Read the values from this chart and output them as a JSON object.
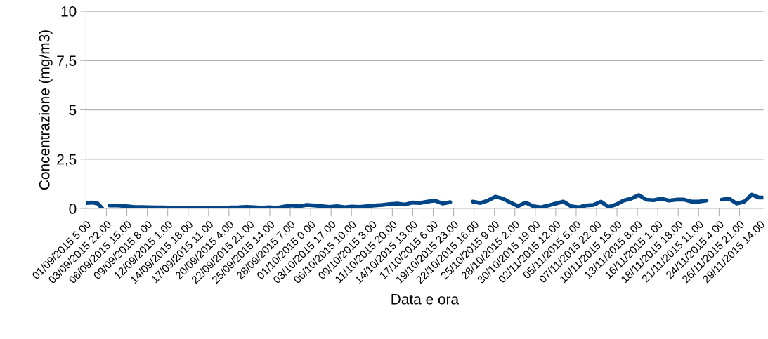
{
  "chart_data": {
    "type": "line",
    "xlabel": "Data e ora",
    "ylabel": "Concentrazione (mg/m3)",
    "x": [
      "2015-09-01T05:00",
      "2015-09-02T00:00",
      "2015-09-02T18:00",
      "2015-09-03T08:00",
      "2015-09-03T20:00",
      "2015-09-04T08:00",
      "2015-09-05T12:00",
      "2015-09-06T12:00",
      "2015-09-07T12:00",
      "2015-09-08T12:00",
      "2015-09-09T12:00",
      "2015-09-10T12:00",
      "2015-09-11T12:00",
      "2015-09-12T12:00",
      "2015-09-13T12:00",
      "2015-09-14T12:00",
      "2015-09-15T12:00",
      "2015-09-16T12:00",
      "2015-09-17T12:00",
      "2015-09-18T12:00",
      "2015-09-19T12:00",
      "2015-09-20T12:00",
      "2015-09-21T12:00",
      "2015-09-22T12:00",
      "2015-09-23T12:00",
      "2015-09-24T12:00",
      "2015-09-25T12:00",
      "2015-09-26T12:00",
      "2015-09-27T12:00",
      "2015-09-28T12:00",
      "2015-09-29T12:00",
      "2015-09-30T12:00",
      "2015-10-01T12:00",
      "2015-10-02T12:00",
      "2015-10-03T12:00",
      "2015-10-04T12:00",
      "2015-10-05T12:00",
      "2015-10-06T12:00",
      "2015-10-07T12:00",
      "2015-10-08T12:00",
      "2015-10-09T12:00",
      "2015-10-10T12:00",
      "2015-10-11T12:00",
      "2015-10-12T12:00",
      "2015-10-13T12:00",
      "2015-10-14T12:00",
      "2015-10-15T12:00",
      "2015-10-16T12:00",
      "2015-10-17T12:00",
      "2015-10-18T12:00",
      "2015-10-19T12:00",
      "2015-10-20T12:00",
      "2015-10-21T12:00",
      "2015-10-22T12:00",
      "2015-10-23T12:00",
      "2015-10-24T12:00",
      "2015-10-25T12:00",
      "2015-10-26T12:00",
      "2015-10-27T12:00",
      "2015-10-28T12:00",
      "2015-10-29T12:00",
      "2015-10-30T12:00",
      "2015-10-31T12:00",
      "2015-11-01T12:00",
      "2015-11-02T12:00",
      "2015-11-03T12:00",
      "2015-11-04T12:00",
      "2015-11-05T12:00",
      "2015-11-06T12:00",
      "2015-11-07T12:00",
      "2015-11-08T12:00",
      "2015-11-09T12:00",
      "2015-11-10T12:00",
      "2015-11-11T12:00",
      "2015-11-12T12:00",
      "2015-11-13T12:00",
      "2015-11-14T12:00",
      "2015-11-15T12:00",
      "2015-11-16T12:00",
      "2015-11-17T12:00",
      "2015-11-18T12:00",
      "2015-11-19T12:00",
      "2015-11-20T12:00",
      "2015-11-21T12:00",
      "2015-11-22T12:00",
      "2015-11-23T12:00",
      "2015-11-24T12:00",
      "2015-11-25T12:00",
      "2015-11-26T12:00",
      "2015-11-27T12:00",
      "2015-11-28T12:00",
      "2015-11-29T12:00",
      "2015-11-30T01:00"
    ],
    "series": [
      {
        "color": "#004586",
        "values": [
          0.28,
          0.3,
          0.25,
          0.02,
          null,
          0.15,
          0.15,
          0.12,
          0.08,
          0.07,
          0.06,
          0.05,
          0.05,
          0.04,
          0.03,
          0.04,
          0.03,
          0.02,
          0.03,
          0.04,
          0.03,
          0.05,
          0.06,
          0.08,
          0.06,
          0.04,
          0.06,
          0.03,
          0.1,
          0.15,
          0.12,
          0.18,
          0.15,
          0.12,
          0.08,
          0.12,
          0.06,
          0.1,
          0.08,
          0.12,
          0.15,
          0.18,
          0.22,
          0.25,
          0.2,
          0.3,
          0.28,
          0.35,
          0.4,
          0.25,
          0.32,
          null,
          null,
          0.35,
          0.28,
          0.4,
          0.6,
          0.5,
          0.3,
          0.12,
          0.3,
          0.12,
          0.06,
          0.15,
          0.25,
          0.35,
          0.12,
          0.06,
          0.15,
          0.18,
          0.35,
          0.08,
          0.2,
          0.4,
          0.5,
          0.68,
          0.45,
          0.42,
          0.5,
          0.4,
          0.45,
          0.45,
          0.35,
          0.35,
          0.4,
          null,
          0.45,
          0.5,
          0.25,
          0.35,
          0.7,
          0.55,
          0.55
        ]
      }
    ],
    "xlim": [
      "2015-09-01T05:00",
      "2015-11-30T01:00"
    ],
    "xticks": [
      {
        "value": "2015-09-01T05:00",
        "label": "01/09/2015 5.00"
      },
      {
        "value": "2015-09-03T22:00",
        "label": "03/09/2015 22.00"
      },
      {
        "value": "2015-09-06T15:00",
        "label": "06/09/2015 15.00"
      },
      {
        "value": "2015-09-09T08:00",
        "label": "09/09/2015 8.00"
      },
      {
        "value": "2015-09-12T01:00",
        "label": "12/09/2015 1.00"
      },
      {
        "value": "2015-09-14T18:00",
        "label": "14/09/2015 18.00"
      },
      {
        "value": "2015-09-17T11:00",
        "label": "17/09/2015 11.00"
      },
      {
        "value": "2015-09-20T04:00",
        "label": "20/09/2015 4.00"
      },
      {
        "value": "2015-09-22T21:00",
        "label": "22/09/2015 21.00"
      },
      {
        "value": "2015-09-25T14:00",
        "label": "25/09/2015 14.00"
      },
      {
        "value": "2015-09-28T07:00",
        "label": "28/09/2015 7.00"
      },
      {
        "value": "2015-10-01T00:00",
        "label": "01/10/2015 0.00"
      },
      {
        "value": "2015-10-03T17:00",
        "label": "03/10/2015 17.00"
      },
      {
        "value": "2015-10-06T10:00",
        "label": "06/10/2015 10.00"
      },
      {
        "value": "2015-10-09T03:00",
        "label": "09/10/2015 3.00"
      },
      {
        "value": "2015-10-11T20:00",
        "label": "11/10/2015 20.00"
      },
      {
        "value": "2015-10-14T13:00",
        "label": "14/10/2015 13.00"
      },
      {
        "value": "2015-10-17T06:00",
        "label": "17/10/2015 6.00"
      },
      {
        "value": "2015-10-19T23:00",
        "label": "19/10/2015 23.00"
      },
      {
        "value": "2015-10-22T16:00",
        "label": "22/10/2015 16.00"
      },
      {
        "value": "2015-10-25T09:00",
        "label": "25/10/2015 9.00"
      },
      {
        "value": "2015-10-28T02:00",
        "label": "28/10/2015 2.00"
      },
      {
        "value": "2015-10-30T19:00",
        "label": "30/10/2015 19.00"
      },
      {
        "value": "2015-11-02T12:00",
        "label": "02/11/2015 12.00"
      },
      {
        "value": "2015-11-05T05:00",
        "label": "05/11/2015 5.00"
      },
      {
        "value": "2015-11-07T22:00",
        "label": "07/11/2015 22.00"
      },
      {
        "value": "2015-11-10T15:00",
        "label": "10/11/2015 15.00"
      },
      {
        "value": "2015-11-13T08:00",
        "label": "13/11/2015 8.00"
      },
      {
        "value": "2015-11-16T01:00",
        "label": "16/11/2015 1.00"
      },
      {
        "value": "2015-11-18T18:00",
        "label": "18/11/2015 18.00"
      },
      {
        "value": "2015-11-21T11:00",
        "label": "21/11/2015 11.00"
      },
      {
        "value": "2015-11-24T04:00",
        "label": "24/11/2015 4.00"
      },
      {
        "value": "2015-11-26T21:00",
        "label": "26/11/2015 21.00"
      },
      {
        "value": "2015-11-29T14:00",
        "label": "29/11/2015 14.00"
      }
    ],
    "ylim": [
      0,
      10
    ],
    "yticks": [
      0,
      {
        "value": 2.5,
        "label": "2,5"
      },
      5,
      {
        "value": 7.5,
        "label": "7,5"
      },
      10
    ],
    "grid": "y",
    "legend": false,
    "marker": "none",
    "line_style": "solid"
  }
}
